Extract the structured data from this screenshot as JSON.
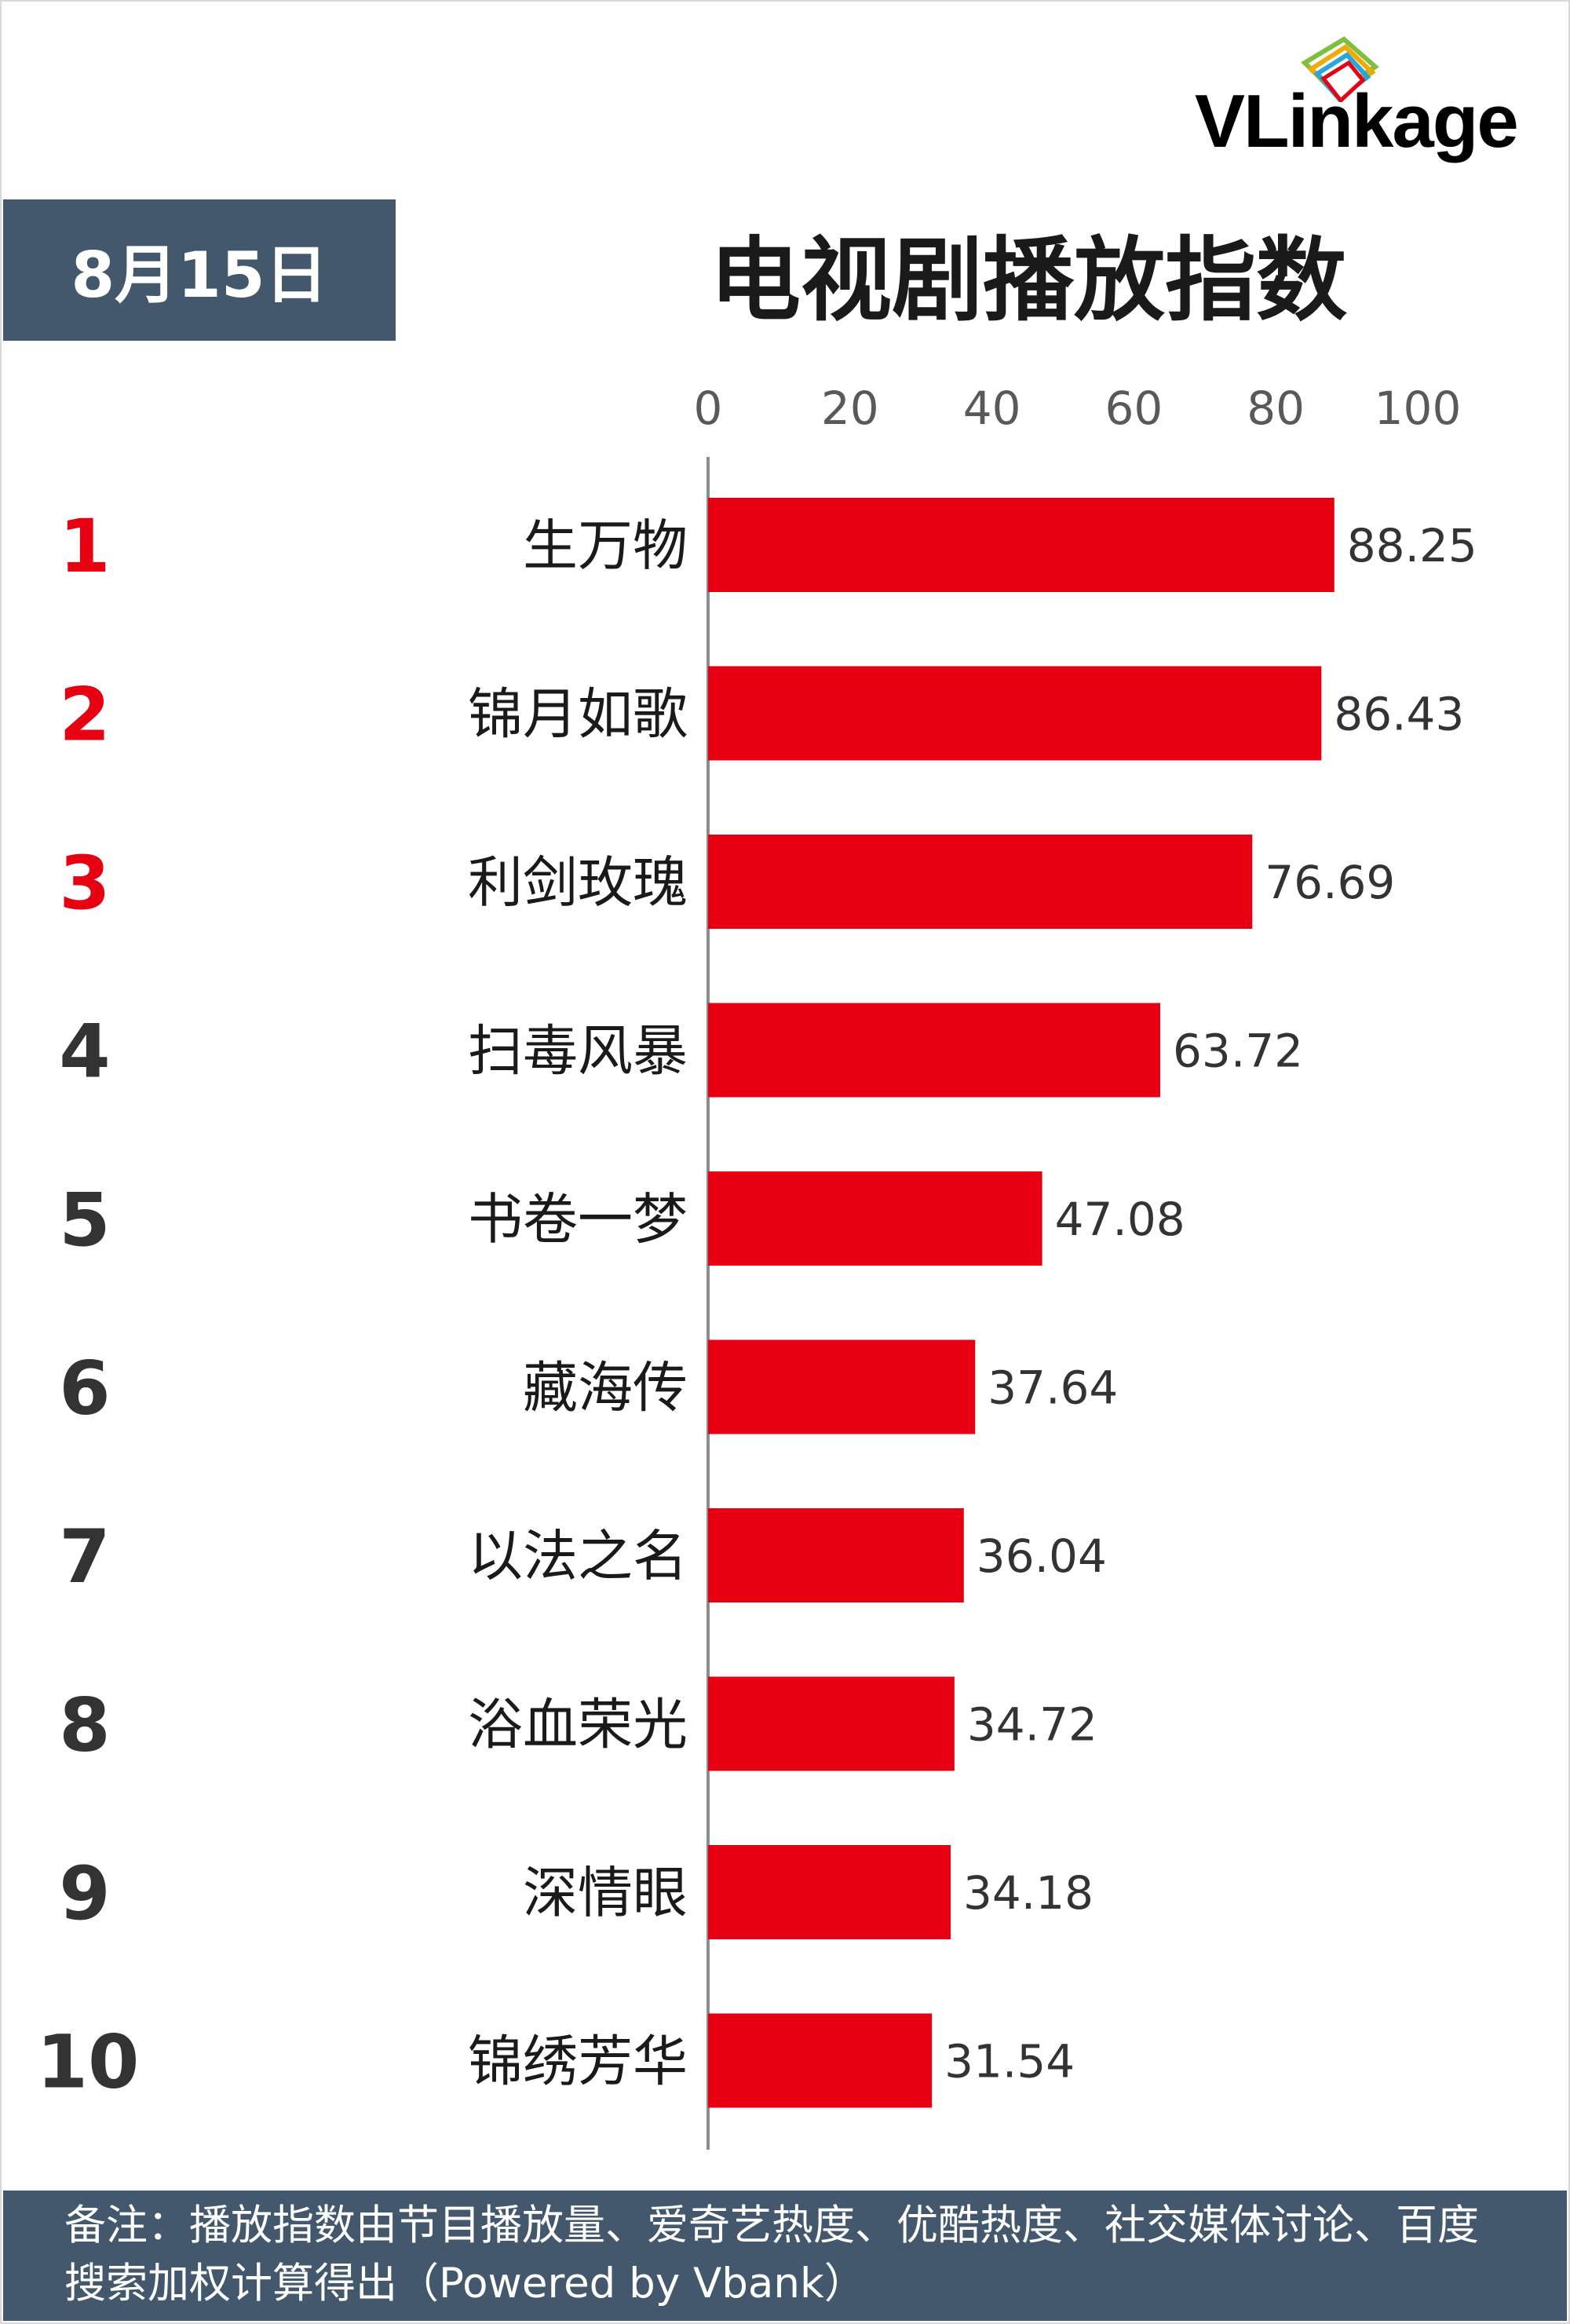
{
  "brand": {
    "logo_text": "VLinkage"
  },
  "header": {
    "date": "8月15日",
    "title": "电视剧播放指数"
  },
  "colors": {
    "bar": "#e60012",
    "accent_rank": "#e60012",
    "normal_rank": "#333333",
    "banner": "#44586d"
  },
  "chart_data": {
    "type": "bar",
    "orientation": "horizontal",
    "title": "电视剧播放指数",
    "ranks": [
      "1",
      "2",
      "3",
      "4",
      "5",
      "6",
      "7",
      "8",
      "9",
      "10"
    ],
    "categories": [
      "生万物",
      "锦月如歌",
      "利剑玫瑰",
      "扫毒风暴",
      "书卷一梦",
      "藏海传",
      "以法之名",
      "浴血荣光",
      "深情眼",
      "锦绣芳华"
    ],
    "values": [
      88.25,
      86.43,
      76.69,
      63.72,
      47.08,
      37.64,
      36.04,
      34.72,
      34.18,
      31.54
    ],
    "value_labels": [
      "88.25",
      "86.43",
      "76.69",
      "63.72",
      "47.08",
      "37.64",
      "36.04",
      "34.72",
      "34.18",
      "31.54"
    ],
    "xlim": [
      0,
      100
    ],
    "xticks": [
      "0",
      "20",
      "40",
      "60",
      "80",
      "100"
    ],
    "xaxis_position": "top",
    "grid": false,
    "legend": "none"
  },
  "footer": {
    "note": "备注：播放指数由节目播放量、爱奇艺热度、优酷热度、社交媒体讨论、百度搜索加权计算得出（Powered by Vbank）"
  }
}
